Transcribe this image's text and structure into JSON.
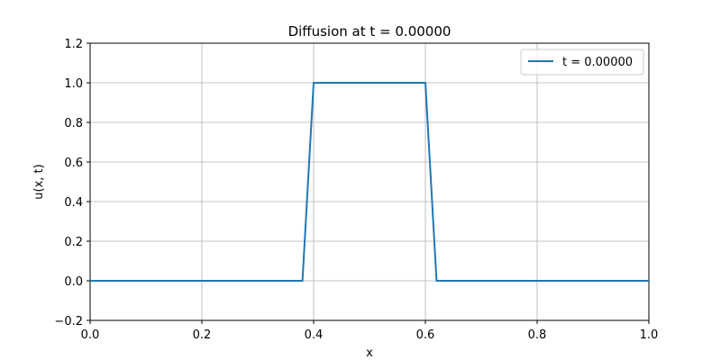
{
  "chart_data": {
    "type": "line",
    "title": "Diffusion at t = 0.00000",
    "xlabel": "x",
    "ylabel": "u(x, t)",
    "xlim": [
      0.0,
      1.0
    ],
    "ylim": [
      -0.2,
      1.2
    ],
    "xticks": [
      "0.0",
      "0.2",
      "0.4",
      "0.6",
      "0.8",
      "1.0"
    ],
    "xtick_values": [
      0.0,
      0.2,
      0.4,
      0.6,
      0.8,
      1.0
    ],
    "yticks": [
      "−0.2",
      "0.0",
      "0.2",
      "0.4",
      "0.6",
      "0.8",
      "1.0",
      "1.2"
    ],
    "ytick_values": [
      -0.2,
      0.0,
      0.2,
      0.4,
      0.6,
      0.8,
      1.0,
      1.2
    ],
    "grid": true,
    "legend_position": "top-right",
    "series": [
      {
        "name": "t = 0.00000",
        "color": "#1f77b4",
        "x": [
          0.0,
          0.38,
          0.4,
          0.6,
          0.62,
          1.0
        ],
        "y": [
          0.0,
          0.0,
          1.0,
          1.0,
          0.0,
          0.0
        ]
      }
    ]
  }
}
